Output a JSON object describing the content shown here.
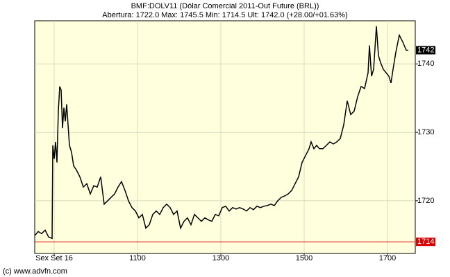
{
  "chart_data": {
    "type": "line",
    "title": "BMF:DOLV11 (Dólar Comercial 2011-Out Future (BRL))",
    "subtitle": "Abertura: 1722.0 Max: 1745.5 Min: 1714.5 Ult: 1742.0 (+28.00/+01.63%)",
    "footer": "(c) www.advfn.com",
    "color": "#000000",
    "x": [
      512,
      517,
      522,
      527,
      532,
      537,
      538,
      540,
      542,
      544,
      546,
      548,
      550,
      552,
      554,
      556,
      558,
      560,
      562,
      565,
      568,
      572,
      577,
      582,
      587,
      592,
      597,
      602,
      607,
      612,
      617,
      622,
      627,
      632,
      637,
      642,
      647,
      652,
      657,
      662,
      667,
      672,
      677,
      682,
      687,
      692,
      697,
      702,
      707,
      712,
      717,
      722,
      727,
      732,
      737,
      742,
      747,
      752,
      757,
      762,
      767,
      772,
      777,
      782,
      787,
      792,
      797,
      802,
      807,
      812,
      817,
      822,
      827,
      832,
      837,
      842,
      847,
      852,
      857,
      862,
      867,
      872,
      877,
      882,
      887,
      892,
      897,
      902,
      907,
      910,
      914,
      918,
      922,
      927,
      932,
      937,
      942,
      947,
      952,
      957,
      962,
      967,
      972,
      977,
      982,
      987,
      992,
      994,
      997,
      1000,
      1004,
      1007,
      1010,
      1014,
      1018,
      1022,
      1025,
      1028,
      1032,
      1037,
      1042,
      1047,
      1050
    ],
    "values": [
      1714.9,
      1715.5,
      1715.2,
      1715.7,
      1714.7,
      1714.5,
      1728.1,
      1726.1,
      1728.6,
      1725.6,
      1733.1,
      1736.7,
      1736.2,
      1730.6,
      1733.6,
      1731.6,
      1734.1,
      1731.1,
      1728.1,
      1727.1,
      1725.1,
      1724.5,
      1723.5,
      1722.0,
      1722.5,
      1721.0,
      1722.2,
      1722.0,
      1723.5,
      1719.5,
      1720.0,
      1720.5,
      1721.0,
      1722.0,
      1722.8,
      1721.5,
      1720.0,
      1719.0,
      1718.5,
      1717.5,
      1718.0,
      1716.0,
      1716.5,
      1718.0,
      1718.5,
      1718.0,
      1719.0,
      1719.5,
      1719.0,
      1718.0,
      1718.5,
      1716.0,
      1717.0,
      1717.5,
      1716.5,
      1718.0,
      1717.5,
      1717.0,
      1717.5,
      1717.2,
      1717.0,
      1718.0,
      1717.8,
      1719.0,
      1719.2,
      1718.5,
      1719.0,
      1718.8,
      1719.0,
      1718.8,
      1718.5,
      1719.0,
      1718.7,
      1719.2,
      1719.0,
      1719.2,
      1719.3,
      1719.5,
      1719.3,
      1720.0,
      1720.5,
      1720.7,
      1721.0,
      1721.5,
      1722.5,
      1723.5,
      1725.6,
      1726.6,
      1727.6,
      1728.6,
      1727.6,
      1728.1,
      1727.6,
      1727.6,
      1728.1,
      1728.6,
      1728.3,
      1728.6,
      1729.1,
      1731.1,
      1734.6,
      1732.6,
      1733.1,
      1735.2,
      1736.7,
      1736.4,
      1738.7,
      1742.7,
      1738.2,
      1739.2,
      1745.5,
      1741.2,
      1740.2,
      1739.2,
      1738.7,
      1738.2,
      1737.2,
      1739.2,
      1741.7,
      1744.2,
      1743.2,
      1742.0,
      1742.0
    ],
    "xlim": [
      512,
      1060
    ],
    "xticks": [
      {
        "value": 540,
        "label": "Sex Set 16"
      },
      {
        "value": 660,
        "label": "1100"
      },
      {
        "value": 780,
        "label": "1300"
      },
      {
        "value": 900,
        "label": "1500"
      },
      {
        "value": 1020,
        "label": "1700"
      }
    ],
    "ylim": [
      1712.3,
      1746.3
    ],
    "yticks": [
      1720,
      1730,
      1740
    ],
    "last_value": 1742,
    "previous_close": 1714,
    "grid": true
  }
}
